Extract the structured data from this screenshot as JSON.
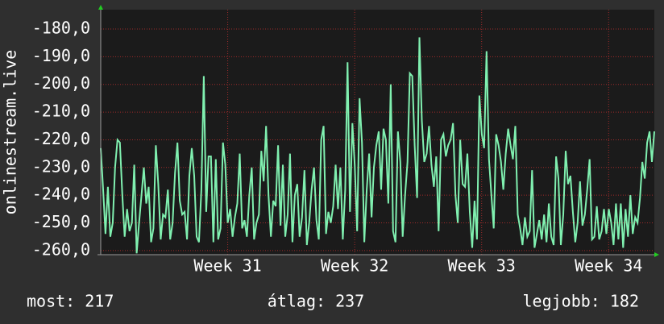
{
  "chart_data": {
    "type": "line",
    "ylabel": "onlinestream.live",
    "color": "#80f0b0",
    "grid": true,
    "ylim": [
      -261.5,
      -173
    ],
    "yticks": [
      {
        "value": -180,
        "label": "-180,0"
      },
      {
        "value": -190,
        "label": "-190,0"
      },
      {
        "value": -200,
        "label": "-200,0"
      },
      {
        "value": -210,
        "label": "-210,0"
      },
      {
        "value": -220,
        "label": "-220,0"
      },
      {
        "value": -230,
        "label": "-230,0"
      },
      {
        "value": -240,
        "label": "-240,0"
      },
      {
        "value": -250,
        "label": "-250,0"
      },
      {
        "value": -260,
        "label": "-260,0"
      }
    ],
    "xlim": [
      30,
      34.36
    ],
    "xticks": [
      {
        "value": 31,
        "label": "Week 31"
      },
      {
        "value": 32,
        "label": "Week 32"
      },
      {
        "value": 33,
        "label": "Week 33"
      },
      {
        "value": 34,
        "label": "Week 34"
      }
    ],
    "values": [
      -223,
      -238,
      -254,
      -237,
      -255,
      -250,
      -230,
      -220,
      -221,
      -240,
      -255,
      -245,
      -253,
      -250,
      -229,
      -261,
      -250,
      -240,
      -230,
      -243,
      -237,
      -257,
      -252,
      -222,
      -236,
      -256,
      -247,
      -248,
      -238,
      -256,
      -250,
      -232,
      -221,
      -242,
      -247,
      -246,
      -256,
      -233,
      -223,
      -233,
      -255,
      -257,
      -238,
      -197,
      -246,
      -226,
      -226,
      -257,
      -227,
      -256,
      -252,
      -221,
      -229,
      -250,
      -245,
      -255,
      -248,
      -243,
      -225,
      -252,
      -249,
      -255,
      -240,
      -230,
      -256,
      -250,
      -247,
      -224,
      -235,
      -215,
      -240,
      -255,
      -242,
      -244,
      -222,
      -251,
      -229,
      -255,
      -247,
      -225,
      -257,
      -240,
      -236,
      -255,
      -248,
      -231,
      -258,
      -250,
      -238,
      -230,
      -249,
      -256,
      -220,
      -215,
      -254,
      -246,
      -250,
      -244,
      -229,
      -245,
      -230,
      -256,
      -238,
      -192,
      -246,
      -214,
      -229,
      -253,
      -205,
      -221,
      -257,
      -238,
      -225,
      -248,
      -230,
      -222,
      -217,
      -238,
      -216,
      -220,
      -243,
      -200,
      -253,
      -257,
      -217,
      -228,
      -255,
      -240,
      -228,
      -196,
      -197,
      -222,
      -241,
      -183,
      -213,
      -228,
      -225,
      -215,
      -229,
      -237,
      -226,
      -253,
      -220,
      -218,
      -226,
      -222,
      -220,
      -214,
      -240,
      -250,
      -220,
      -236,
      -237,
      -225,
      -246,
      -259,
      -242,
      -256,
      -204,
      -218,
      -223,
      -188,
      -227,
      -240,
      -252,
      -218,
      -222,
      -228,
      -238,
      -225,
      -216,
      -222,
      -227,
      -215,
      -247,
      -252,
      -258,
      -248,
      -255,
      -253,
      -231,
      -259,
      -254,
      -249,
      -256,
      -247,
      -257,
      -243,
      -255,
      -258,
      -226,
      -234,
      -258,
      -247,
      -224,
      -236,
      -233,
      -246,
      -257,
      -250,
      -235,
      -251,
      -247,
      -238,
      -227,
      -256,
      -255,
      -244,
      -256,
      -253,
      -245,
      -254,
      -245,
      -250,
      -258,
      -243,
      -256,
      -243,
      -259,
      -245,
      -255,
      -240,
      -254,
      -248,
      -250,
      -241,
      -228,
      -234,
      -221,
      -217,
      -228,
      -217
    ],
    "stats": [
      "most: 217",
      "átlag: 237",
      "legjobb: 182"
    ]
  }
}
